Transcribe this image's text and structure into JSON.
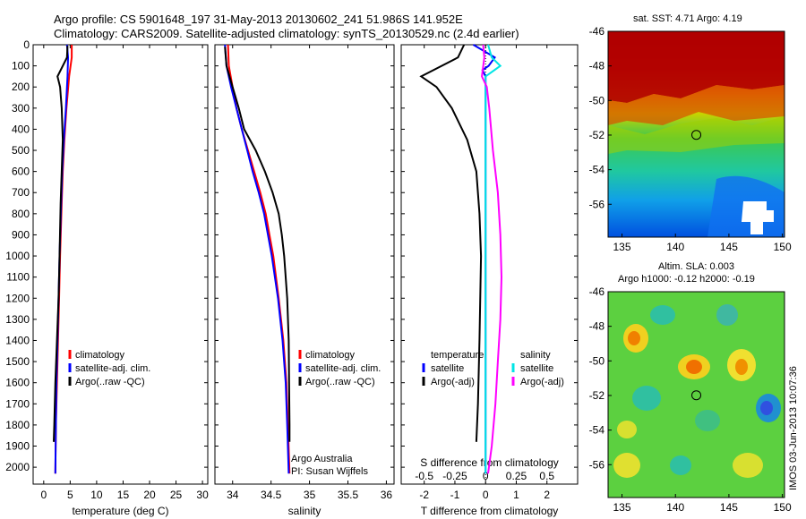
{
  "header": {
    "line1": "Argo profile: CS 5901648_197 31-May-2013 20130602_241 51.986S 141.952E",
    "line2": "Climatology: CARS2009. Satellite-adjusted climatology: synTS_20130529.nc (2.4d earlier)"
  },
  "sst_title": "sat. SST: 4.71 Argo: 4.19",
  "sla_title": {
    "line1": "Altim. SLA: 0.003",
    "line2": "Argo h1000: -0.12 h2000: -0.19"
  },
  "vertical_stamp": "IMOS 03-Jun-2013 10:07:36",
  "credits": {
    "line1": "Argo Australia",
    "line2": "PI: Susan Wijffels"
  },
  "colors": {
    "climatology": "#ff0000",
    "satellite": "#0000ff",
    "argo": "#000000",
    "sal_satellite": "#00e5e5",
    "sal_argo": "#ff00ff"
  },
  "chart_data": [
    {
      "type": "line",
      "xlabel": "temperature (deg C)",
      "ylabel": "",
      "xlim": [
        -2,
        31
      ],
      "ylim": [
        2080,
        0
      ],
      "xticks": [
        0,
        5,
        10,
        15,
        20,
        25,
        30
      ],
      "yticks": [
        0,
        100,
        200,
        300,
        400,
        500,
        600,
        700,
        800,
        900,
        1000,
        1100,
        1200,
        1300,
        1400,
        1500,
        1600,
        1700,
        1800,
        1900,
        2000
      ],
      "legend": {
        "position": "center",
        "labels": [
          "climatology",
          "satellite-adj. clim.",
          "Argo(..raw -QC)"
        ]
      },
      "series": [
        {
          "name": "climatology",
          "color": "#ff0000",
          "points": [
            [
              5.3,
              0
            ],
            [
              5.3,
              60
            ],
            [
              4.8,
              150
            ],
            [
              4.3,
              300
            ],
            [
              3.9,
              450
            ],
            [
              3.6,
              600
            ],
            [
              3.4,
              750
            ],
            [
              3.1,
              1000
            ],
            [
              2.9,
              1200
            ],
            [
              2.7,
              1400
            ],
            [
              2.5,
              1600
            ],
            [
              2.3,
              1800
            ],
            [
              2.2,
              2030
            ]
          ]
        },
        {
          "name": "satellite-adj. clim.",
          "color": "#0000ff",
          "points": [
            [
              4.4,
              0
            ],
            [
              4.6,
              60
            ],
            [
              4.5,
              150
            ],
            [
              4.2,
              300
            ],
            [
              3.8,
              450
            ],
            [
              3.5,
              600
            ],
            [
              3.3,
              750
            ],
            [
              3.0,
              1000
            ],
            [
              2.8,
              1200
            ],
            [
              2.6,
              1400
            ],
            [
              2.4,
              1600
            ],
            [
              2.3,
              1800
            ],
            [
              2.2,
              2030
            ]
          ]
        },
        {
          "name": "Argo(..raw -QC)",
          "color": "#000000",
          "points": [
            [
              4.5,
              5
            ],
            [
              4.4,
              60
            ],
            [
              2.6,
              150
            ],
            [
              3.1,
              200
            ],
            [
              3.4,
              300
            ],
            [
              3.6,
              450
            ],
            [
              3.4,
              600
            ],
            [
              3.2,
              750
            ],
            [
              3.0,
              1000
            ],
            [
              2.8,
              1200
            ],
            [
              2.5,
              1400
            ],
            [
              2.2,
              1600
            ],
            [
              2.0,
              1800
            ],
            [
              1.9,
              1880
            ]
          ]
        }
      ]
    },
    {
      "type": "line",
      "xlabel": "salinity",
      "ylabel": "",
      "xlim": [
        33.77,
        36.1
      ],
      "ylim": [
        2080,
        0
      ],
      "xticks": [
        34,
        34.5,
        35,
        35.5,
        36
      ],
      "legend": {
        "position": "center-right",
        "labels": [
          "climatology",
          "satellite-adj. clim.",
          "Argo(..raw -QC)"
        ]
      },
      "series": [
        {
          "name": "climatology",
          "color": "#ff0000",
          "points": [
            [
              33.94,
              0
            ],
            [
              33.95,
              100
            ],
            [
              34.0,
              200
            ],
            [
              34.05,
              300
            ],
            [
              34.12,
              400
            ],
            [
              34.2,
              500
            ],
            [
              34.28,
              600
            ],
            [
              34.36,
              700
            ],
            [
              34.43,
              800
            ],
            [
              34.48,
              900
            ],
            [
              34.53,
              1000
            ],
            [
              34.6,
              1200
            ],
            [
              34.66,
              1400
            ],
            [
              34.7,
              1600
            ],
            [
              34.72,
              1800
            ],
            [
              34.74,
              2030
            ]
          ]
        },
        {
          "name": "satellite-adj. clim.",
          "color": "#0000ff",
          "points": [
            [
              33.9,
              0
            ],
            [
              33.92,
              100
            ],
            [
              33.98,
              200
            ],
            [
              34.05,
              300
            ],
            [
              34.12,
              400
            ],
            [
              34.19,
              500
            ],
            [
              34.26,
              600
            ],
            [
              34.34,
              700
            ],
            [
              34.41,
              800
            ],
            [
              34.46,
              900
            ],
            [
              34.51,
              1000
            ],
            [
              34.59,
              1200
            ],
            [
              34.65,
              1400
            ],
            [
              34.69,
              1600
            ],
            [
              34.71,
              1800
            ],
            [
              34.73,
              2030
            ]
          ]
        },
        {
          "name": "Argo(..raw -QC)",
          "color": "#000000",
          "points": [
            [
              33.9,
              10
            ],
            [
              33.92,
              100
            ],
            [
              34.0,
              200
            ],
            [
              34.08,
              300
            ],
            [
              34.15,
              400
            ],
            [
              34.3,
              500
            ],
            [
              34.42,
              600
            ],
            [
              34.52,
              700
            ],
            [
              34.6,
              800
            ],
            [
              34.64,
              900
            ],
            [
              34.67,
              1000
            ],
            [
              34.71,
              1200
            ],
            [
              34.73,
              1400
            ],
            [
              34.735,
              1600
            ],
            [
              34.74,
              1800
            ],
            [
              34.74,
              1880
            ]
          ]
        }
      ]
    },
    {
      "type": "line",
      "xlabel": "T difference from climatology",
      "x2label": "S difference from climatology",
      "xlim": [
        -2.75,
        3.0
      ],
      "ylim": [
        2080,
        0
      ],
      "xticks": [
        -2,
        -1,
        0,
        1,
        2
      ],
      "x2lim": [
        -0.6875,
        0.75
      ],
      "x2ticks": [
        -0.5,
        -0.25,
        0,
        0.25,
        0.5
      ],
      "legend": {
        "position": "center",
        "temperature_title": "temperature",
        "salinity_title": "salinity",
        "labels": [
          "satellite",
          "Argo(-adj)",
          "satellite",
          "Argo(-adj)"
        ]
      },
      "series": [
        {
          "name": "satellite",
          "group": "temperature",
          "color": "#0000ff",
          "points": [
            [
              -0.4,
              0
            ],
            [
              0.3,
              60
            ],
            [
              0.1,
              100
            ],
            [
              -0.1,
              120
            ],
            [
              0.0,
              150
            ],
            [
              0.0,
              2030
            ]
          ]
        },
        {
          "name": "Argo(-adj)",
          "group": "temperature",
          "color": "#000000",
          "points": [
            [
              -0.7,
              0
            ],
            [
              -0.9,
              60
            ],
            [
              -2.1,
              150
            ],
            [
              -1.6,
              200
            ],
            [
              -1.1,
              300
            ],
            [
              -0.6,
              450
            ],
            [
              -0.3,
              600
            ],
            [
              -0.2,
              800
            ],
            [
              -0.15,
              1000
            ],
            [
              -0.2,
              1400
            ],
            [
              -0.25,
              1700
            ],
            [
              -0.3,
              1880
            ]
          ]
        },
        {
          "name": "satellite",
          "group": "salinity",
          "color": "#00e5e5",
          "points": [
            [
              0.02,
              0
            ],
            [
              0.05,
              60
            ],
            [
              0.12,
              100
            ],
            [
              0.0,
              150
            ],
            [
              0.0,
              250
            ],
            [
              0.0,
              800
            ],
            [
              0.0,
              1500
            ],
            [
              0.0,
              2030
            ]
          ]
        },
        {
          "name": "Argo(-adj)",
          "group": "salinity",
          "color": "#ff00ff",
          "points": [
            [
              -0.02,
              0
            ],
            [
              -0.01,
              60
            ],
            [
              -0.03,
              150
            ],
            [
              0.01,
              200
            ],
            [
              0.03,
              300
            ],
            [
              0.06,
              500
            ],
            [
              0.1,
              700
            ],
            [
              0.12,
              900
            ],
            [
              0.13,
              1100
            ],
            [
              0.12,
              1300
            ],
            [
              0.1,
              1500
            ],
            [
              0.08,
              1700
            ],
            [
              0.05,
              1900
            ],
            [
              0.02,
              2030
            ]
          ]
        }
      ]
    },
    {
      "type": "heatmap",
      "title": "sat. SST: 4.71 Argo: 4.19",
      "xlim": [
        133.7,
        150.2
      ],
      "ylim": [
        -57.9,
        -46.0
      ],
      "xticks": [
        135,
        140,
        145,
        150
      ],
      "yticks": [
        -46,
        -48,
        -50,
        -52,
        -54,
        -56
      ],
      "marker": {
        "lon": 141.952,
        "lat": -51.986
      }
    },
    {
      "type": "heatmap",
      "title": "Altim. SLA: 0.003",
      "xlim": [
        133.7,
        150.2
      ],
      "ylim": [
        -57.9,
        -46.0
      ],
      "xticks": [
        135,
        140,
        145,
        150
      ],
      "yticks": [
        -46,
        -48,
        -50,
        -52,
        -54,
        -56
      ],
      "marker": {
        "lon": 141.952,
        "lat": -51.986
      }
    }
  ]
}
